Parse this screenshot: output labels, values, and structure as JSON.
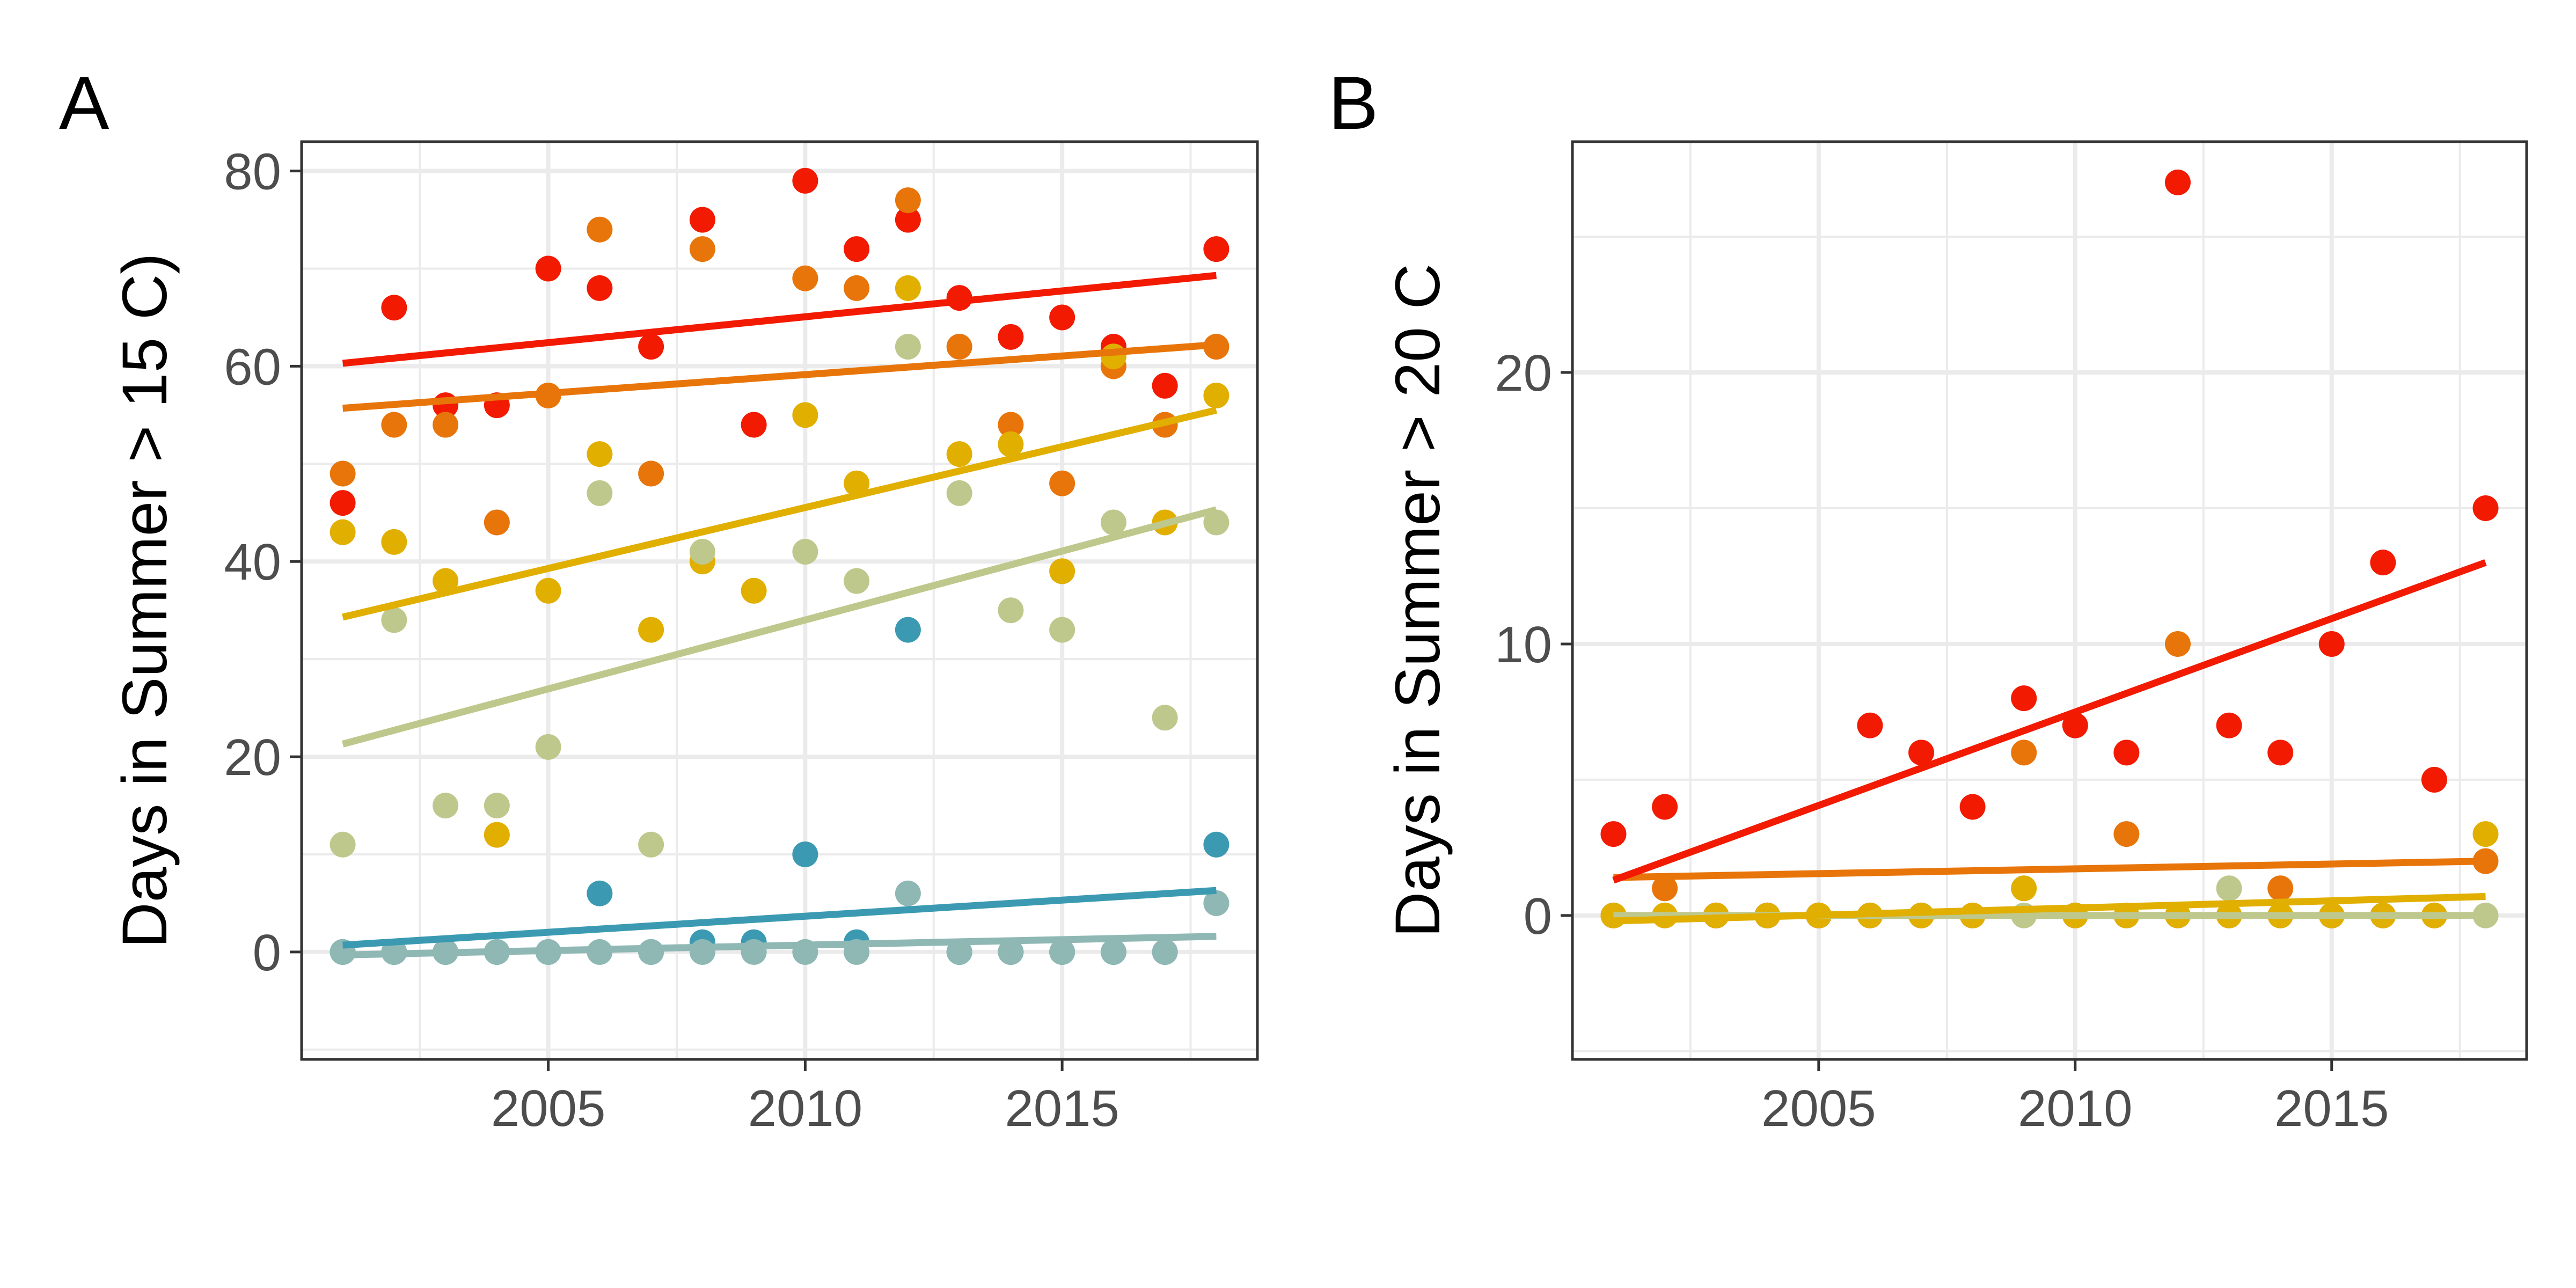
{
  "chart_data": [
    {
      "type": "scatter",
      "panel_label": "A",
      "title": "",
      "xlabel": "",
      "ylabel": "Days in Summer > 15 C)",
      "xlim": [
        2000.2,
        2018.8
      ],
      "ylim": [
        -11,
        83
      ],
      "x_ticks": [
        2005,
        2010,
        2015
      ],
      "y_ticks": [
        0,
        20,
        40,
        60,
        80
      ],
      "grid": true,
      "legend": "none",
      "series": [
        {
          "color": "#f21a00",
          "points": [
            [
              2001,
              46
            ],
            [
              2002,
              66
            ],
            [
              2003,
              56
            ],
            [
              2004,
              56
            ],
            [
              2005,
              70
            ],
            [
              2006,
              68
            ],
            [
              2007,
              62
            ],
            [
              2008,
              75
            ],
            [
              2009,
              54
            ],
            [
              2010,
              79
            ],
            [
              2011,
              72
            ],
            [
              2012,
              75
            ],
            [
              2013,
              67
            ],
            [
              2014,
              63
            ],
            [
              2015,
              65
            ],
            [
              2016,
              62
            ],
            [
              2017,
              58
            ],
            [
              2018,
              72
            ]
          ],
          "trend": [
            [
              2001,
              60.3
            ],
            [
              2018,
              69.3
            ]
          ]
        },
        {
          "color": "#e8750a",
          "points": [
            [
              2001,
              49
            ],
            [
              2002,
              54
            ],
            [
              2003,
              54
            ],
            [
              2004,
              44
            ],
            [
              2005,
              57
            ],
            [
              2006,
              74
            ],
            [
              2007,
              49
            ],
            [
              2008,
              72
            ],
            [
              2010,
              69
            ],
            [
              2011,
              68
            ],
            [
              2012,
              77
            ],
            [
              2013,
              62
            ],
            [
              2014,
              54
            ],
            [
              2015,
              48
            ],
            [
              2016,
              60
            ],
            [
              2017,
              54
            ],
            [
              2018,
              62
            ]
          ],
          "trend": [
            [
              2001,
              55.7
            ],
            [
              2018,
              62.2
            ]
          ]
        },
        {
          "color": "#e1af00",
          "points": [
            [
              2001,
              43
            ],
            [
              2002,
              42
            ],
            [
              2003,
              38
            ],
            [
              2004,
              12
            ],
            [
              2005,
              37
            ],
            [
              2006,
              51
            ],
            [
              2007,
              33
            ],
            [
              2008,
              40
            ],
            [
              2009,
              37
            ],
            [
              2010,
              55
            ],
            [
              2011,
              48
            ],
            [
              2012,
              68
            ],
            [
              2013,
              51
            ],
            [
              2014,
              52
            ],
            [
              2015,
              39
            ],
            [
              2016,
              61
            ],
            [
              2017,
              44
            ],
            [
              2018,
              57
            ]
          ],
          "trend": [
            [
              2001,
              34.3
            ],
            [
              2018,
              55.5
            ]
          ]
        },
        {
          "color": "#bfc88c",
          "points": [
            [
              2001,
              11
            ],
            [
              2002,
              34
            ],
            [
              2003,
              15
            ],
            [
              2004,
              15
            ],
            [
              2005,
              21
            ],
            [
              2006,
              47
            ],
            [
              2007,
              11
            ],
            [
              2008,
              41
            ],
            [
              2010,
              41
            ],
            [
              2011,
              38
            ],
            [
              2012,
              62
            ],
            [
              2013,
              47
            ],
            [
              2014,
              35
            ],
            [
              2015,
              33
            ],
            [
              2016,
              44
            ],
            [
              2017,
              24
            ],
            [
              2018,
              44
            ]
          ],
          "trend": [
            [
              2001,
              21.3
            ],
            [
              2018,
              45.3
            ]
          ]
        },
        {
          "color": "#3b9ab2",
          "points": [
            [
              2001,
              0
            ],
            [
              2002,
              0
            ],
            [
              2003,
              0
            ],
            [
              2004,
              0
            ],
            [
              2005,
              0
            ],
            [
              2006,
              6
            ],
            [
              2007,
              0
            ],
            [
              2008,
              1
            ],
            [
              2009,
              1
            ],
            [
              2010,
              10
            ],
            [
              2011,
              1
            ],
            [
              2012,
              33
            ],
            [
              2013,
              0
            ],
            [
              2014,
              0
            ],
            [
              2015,
              0
            ],
            [
              2016,
              0
            ],
            [
              2017,
              0
            ],
            [
              2018,
              11
            ]
          ],
          "trend": [
            [
              2001,
              0.7
            ],
            [
              2018,
              6.3
            ]
          ]
        },
        {
          "color": "#8fb8b5",
          "points": [
            [
              2001,
              0
            ],
            [
              2002,
              0
            ],
            [
              2003,
              0
            ],
            [
              2004,
              0
            ],
            [
              2005,
              0
            ],
            [
              2006,
              0
            ],
            [
              2007,
              0
            ],
            [
              2008,
              0
            ],
            [
              2009,
              0
            ],
            [
              2010,
              0
            ],
            [
              2011,
              0
            ],
            [
              2012,
              6
            ],
            [
              2013,
              0
            ],
            [
              2014,
              0
            ],
            [
              2015,
              0
            ],
            [
              2016,
              0
            ],
            [
              2017,
              0
            ],
            [
              2018,
              5
            ]
          ],
          "trend": [
            [
              2001,
              -0.3
            ],
            [
              2018,
              1.6
            ]
          ]
        }
      ]
    },
    {
      "type": "scatter",
      "panel_label": "B",
      "title": "",
      "xlabel": "",
      "ylabel": "Days in Summer > 20 C",
      "xlim": [
        2000.2,
        2018.8
      ],
      "ylim": [
        -5.3,
        28.5
      ],
      "x_ticks": [
        2005,
        2010,
        2015
      ],
      "y_ticks": [
        0,
        10,
        20
      ],
      "grid": true,
      "legend": "none",
      "series": [
        {
          "color": "#bfc88c",
          "points": [
            [
              2001,
              0
            ],
            [
              2002,
              0
            ],
            [
              2003,
              0
            ],
            [
              2004,
              0
            ],
            [
              2005,
              0
            ],
            [
              2006,
              0
            ],
            [
              2007,
              0
            ],
            [
              2008,
              0
            ],
            [
              2009,
              0
            ],
            [
              2010,
              0
            ],
            [
              2011,
              0
            ],
            [
              2012,
              0
            ],
            [
              2013,
              1
            ],
            [
              2014,
              0
            ],
            [
              2015,
              0
            ],
            [
              2016,
              0
            ],
            [
              2017,
              0
            ],
            [
              2018,
              0
            ]
          ],
          "trend": [
            [
              2001,
              0.0
            ],
            [
              2018,
              0.0
            ]
          ]
        },
        {
          "color": "#e8750a",
          "points": [
            [
              2001,
              0
            ],
            [
              2002,
              1
            ],
            [
              2003,
              0
            ],
            [
              2004,
              0
            ],
            [
              2005,
              0
            ],
            [
              2006,
              0
            ],
            [
              2007,
              0
            ],
            [
              2008,
              0
            ],
            [
              2009,
              6
            ],
            [
              2010,
              0
            ],
            [
              2011,
              3
            ],
            [
              2012,
              10
            ],
            [
              2013,
              0
            ],
            [
              2014,
              1
            ],
            [
              2015,
              0
            ],
            [
              2016,
              0
            ],
            [
              2017,
              0
            ],
            [
              2018,
              2
            ]
          ],
          "trend": [
            [
              2001,
              1.4
            ],
            [
              2018,
              2.0
            ]
          ]
        },
        {
          "color": "#f21a00",
          "points": [
            [
              2001,
              3
            ],
            [
              2002,
              4
            ],
            [
              2003,
              0
            ],
            [
              2004,
              0
            ],
            [
              2005,
              0
            ],
            [
              2006,
              7
            ],
            [
              2007,
              6
            ],
            [
              2008,
              4
            ],
            [
              2009,
              8
            ],
            [
              2010,
              7
            ],
            [
              2011,
              6
            ],
            [
              2012,
              27
            ],
            [
              2013,
              7
            ],
            [
              2014,
              6
            ],
            [
              2015,
              10
            ],
            [
              2016,
              13
            ],
            [
              2017,
              5
            ],
            [
              2018,
              15
            ]
          ],
          "trend": [
            [
              2001,
              1.3
            ],
            [
              2018,
              13.0
            ]
          ]
        },
        {
          "color": "#e1af00",
          "points": [
            [
              2001,
              0
            ],
            [
              2002,
              0
            ],
            [
              2003,
              0
            ],
            [
              2004,
              0
            ],
            [
              2005,
              0
            ],
            [
              2006,
              0
            ],
            [
              2007,
              0
            ],
            [
              2008,
              0
            ],
            [
              2009,
              1
            ],
            [
              2010,
              0
            ],
            [
              2011,
              0
            ],
            [
              2012,
              0
            ],
            [
              2013,
              0
            ],
            [
              2014,
              0
            ],
            [
              2015,
              0
            ],
            [
              2016,
              0
            ],
            [
              2017,
              0
            ],
            [
              2018,
              3
            ]
          ],
          "trend": [
            [
              2001,
              -0.2
            ],
            [
              2018,
              0.7
            ]
          ]
        }
      ]
    }
  ]
}
